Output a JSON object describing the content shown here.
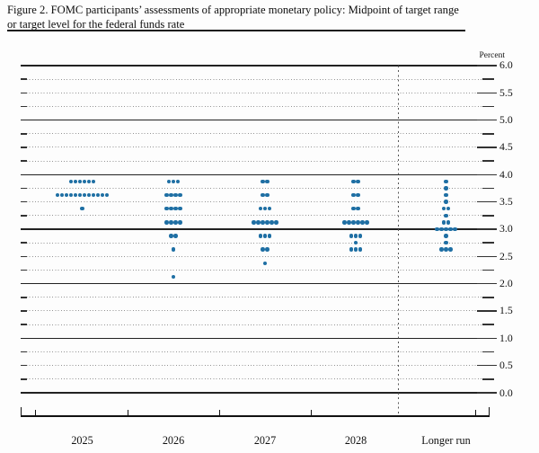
{
  "title": {
    "line1": "Figure 2. FOMC participants’ assessments of appropriate monetary policy: Midpoint of target range",
    "line2": "or target level for the federal funds rate"
  },
  "axis": {
    "unit_label": "Percent",
    "y_tick_labels": [
      "6.0",
      "5.5",
      "5.0",
      "4.5",
      "4.0",
      "3.5",
      "3.0",
      "2.5",
      "2.0",
      "1.5",
      "1.0",
      "0.5",
      "0.0"
    ]
  },
  "colors": {
    "dot": "#1F6FA4",
    "grid_major": "#222222",
    "grid_minor": "#949494",
    "tick": "#333333"
  },
  "chart_data": {
    "type": "scatter",
    "title": "FOMC participants’ assessments of appropriate monetary policy: Midpoint of target range or target level for the federal funds rate",
    "ylabel": "Percent",
    "ylim": [
      0.0,
      6.0
    ],
    "y_major_step": 0.5,
    "y_minor_step": 0.25,
    "grid": "solid lines at integers, dotted lines at quarter points",
    "categories": [
      "2025",
      "2026",
      "2027",
      "2028",
      "Longer run"
    ],
    "series": [
      {
        "category": "2025",
        "dots": {
          "3.875": 6,
          "3.625": 12,
          "3.375": 1
        }
      },
      {
        "category": "2026",
        "dots": {
          "3.875": 3,
          "3.625": 4,
          "3.375": 4,
          "3.125": 4,
          "2.875": 2,
          "2.625": 1,
          "2.125": 1
        }
      },
      {
        "category": "2027",
        "dots": {
          "3.875": 2,
          "3.625": 2,
          "3.375": 3,
          "3.125": 6,
          "2.875": 3,
          "2.625": 2,
          "2.375": 1
        }
      },
      {
        "category": "2028",
        "dots": {
          "3.875": 2,
          "3.625": 2,
          "3.375": 2,
          "3.125": 6,
          "2.875": 3,
          "2.75": 1,
          "2.625": 3
        }
      },
      {
        "category": "Longer run",
        "dots": {
          "3.875": 1,
          "3.75": 1,
          "3.625": 1,
          "3.5": 1,
          "3.375": 2,
          "3.25": 1,
          "3.125": 2,
          "3.0": 5,
          "2.875": 1,
          "2.75": 1,
          "2.625": 3
        }
      }
    ]
  }
}
